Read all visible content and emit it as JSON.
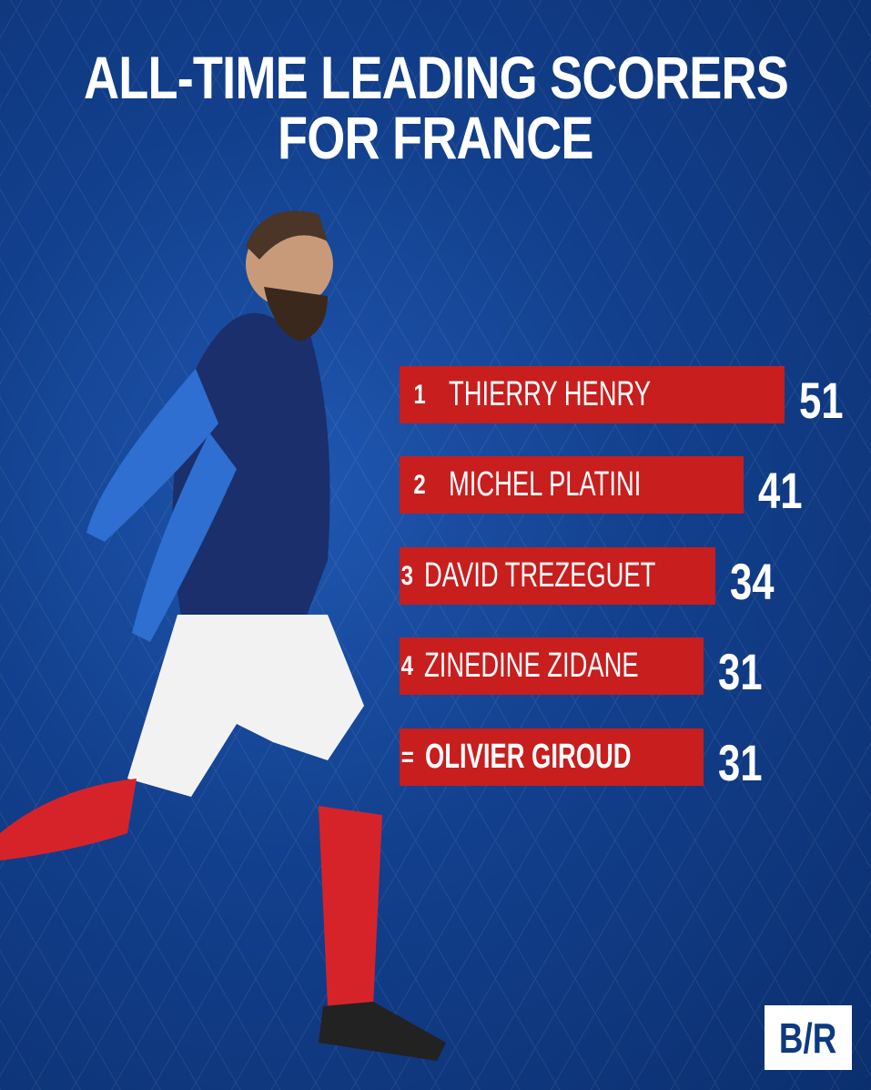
{
  "chart_data": {
    "type": "bar",
    "orientation": "horizontal",
    "title": "ALL-TIME LEADING SCORERS FOR FRANCE",
    "categories": [
      "THIERRY HENRY",
      "MICHEL PLATINI",
      "DAVID TREZEGUET",
      "ZINEDINE ZIDANE",
      "OLIVIER GIROUD"
    ],
    "ranks": [
      "1",
      "2",
      "3",
      "4",
      "="
    ],
    "values": [
      51,
      41,
      34,
      31,
      31
    ],
    "highlight": "OLIVIER GIROUD",
    "bar_color": "#c81e1e",
    "background_color": "#123f8c",
    "grid": false
  },
  "title_lines": [
    "ALL-TIME LEADING SCORERS",
    "FOR FRANCE"
  ],
  "logo_text": "B/R"
}
